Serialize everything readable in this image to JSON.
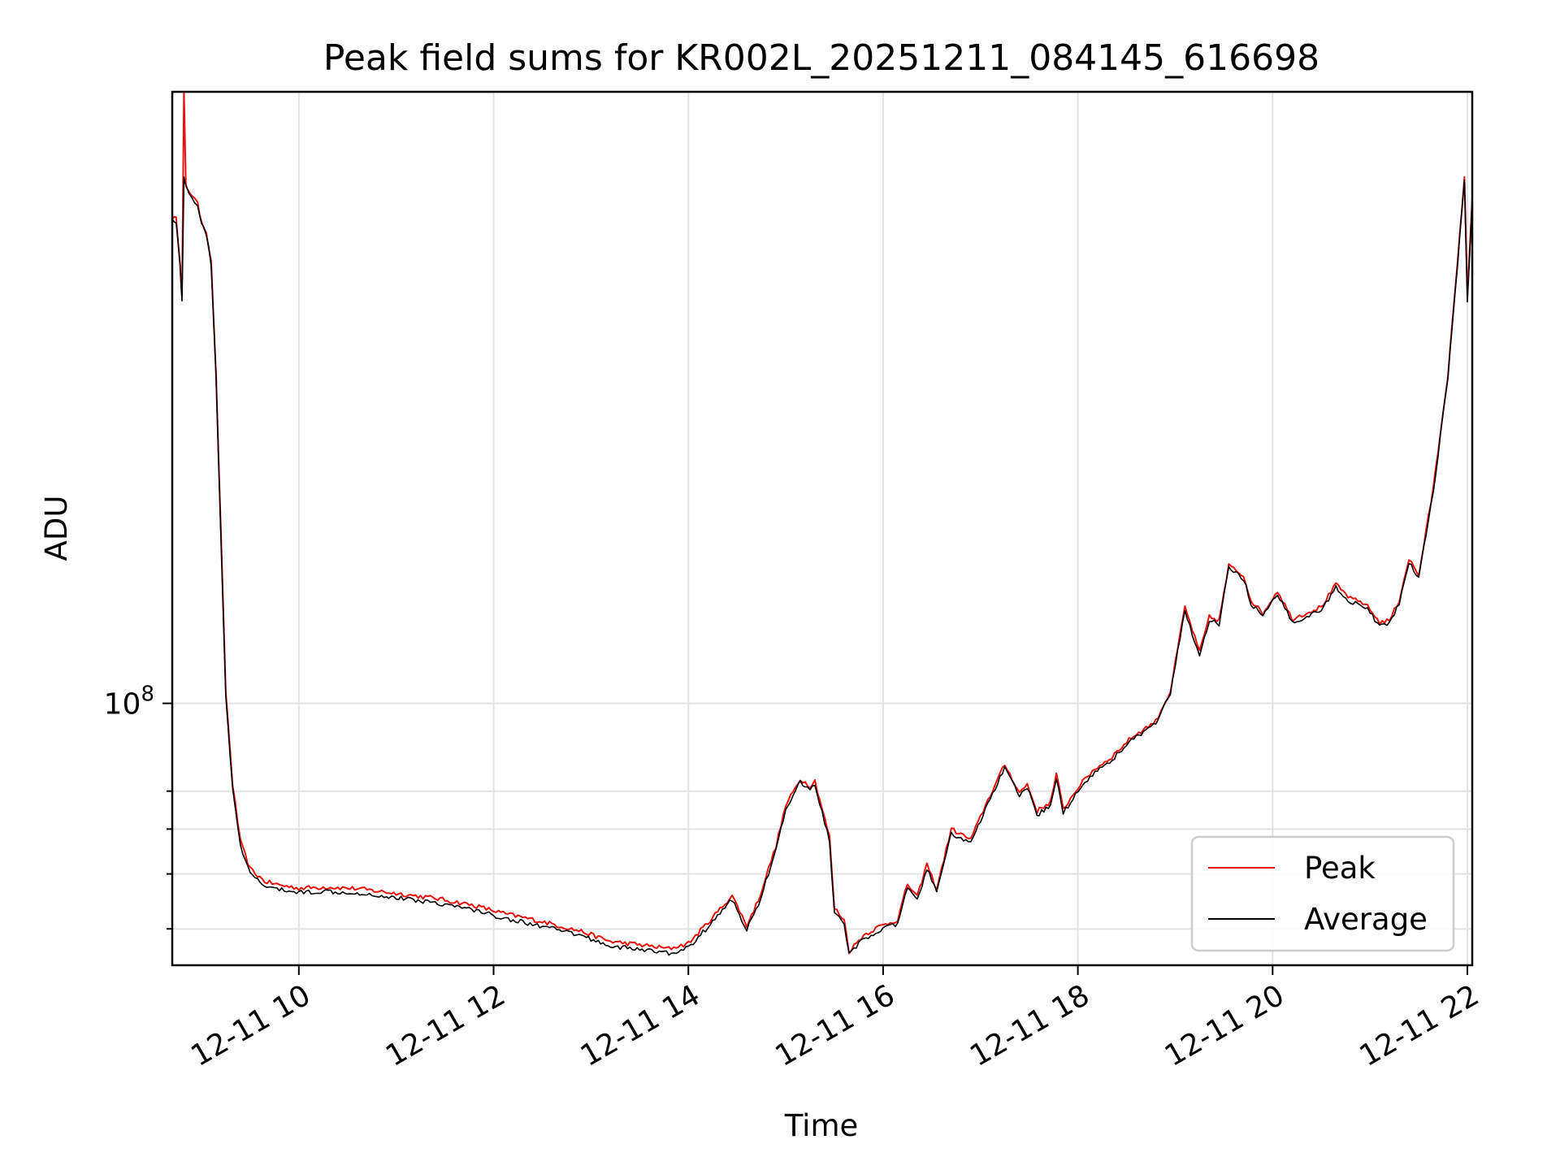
{
  "chart_data": {
    "type": "line",
    "title": "Peak field sums for KR002L_20251211_084145_616698",
    "xlabel": "Time",
    "ylabel": "ADU",
    "y_scale": "log",
    "xlim": [
      8.7,
      22.05
    ],
    "ylim": [
      34500000,
      1200000000
    ],
    "x_ticks": [
      10,
      12,
      14,
      16,
      18,
      20,
      22
    ],
    "x_tick_labels": [
      "12-11 10",
      "12-11 12",
      "12-11 14",
      "12-11 16",
      "12-11 18",
      "12-11 20",
      "12-11 22"
    ],
    "y_major_ticks": [
      100000000
    ],
    "y_tick_labels": [
      {
        "base": "10",
        "exp": "8"
      }
    ],
    "y_minor_ticks": [
      40000000,
      50000000,
      60000000,
      70000000
    ],
    "grid": true,
    "legend": {
      "location": "lower right",
      "entries": [
        "Peak",
        "Average"
      ]
    },
    "series": [
      {
        "name": "Peak",
        "color": "#e8120c",
        "points": [
          [
            8.7,
            720000000
          ],
          [
            8.74,
            715000000
          ],
          [
            8.78,
            600000000
          ],
          [
            8.8,
            520000000
          ],
          [
            8.82,
            1200000000
          ],
          [
            8.84,
            820000000
          ],
          [
            8.9,
            790000000
          ],
          [
            8.96,
            760000000
          ],
          [
            9.0,
            710000000
          ],
          [
            9.05,
            680000000
          ],
          [
            9.1,
            600000000
          ],
          [
            9.15,
            380000000
          ],
          [
            9.2,
            200000000
          ],
          [
            9.25,
            105000000
          ],
          [
            9.32,
            72000000
          ],
          [
            9.4,
            57000000
          ],
          [
            9.5,
            51000000
          ],
          [
            9.65,
            48500000
          ],
          [
            9.8,
            47800000
          ],
          [
            10.0,
            47200000
          ],
          [
            10.3,
            47400000
          ],
          [
            10.6,
            47100000
          ],
          [
            11.0,
            46200000
          ],
          [
            11.4,
            45300000
          ],
          [
            11.8,
            44000000
          ],
          [
            12.1,
            42600000
          ],
          [
            12.5,
            41200000
          ],
          [
            12.9,
            39600000
          ],
          [
            13.2,
            38000000
          ],
          [
            13.5,
            37500000
          ],
          [
            13.8,
            36900000
          ],
          [
            14.0,
            37700000
          ],
          [
            14.2,
            41000000
          ],
          [
            14.45,
            45800000
          ],
          [
            14.6,
            40500000
          ],
          [
            14.72,
            45000000
          ],
          [
            14.9,
            56000000
          ],
          [
            15.0,
            66000000
          ],
          [
            15.15,
            73500000
          ],
          [
            15.25,
            71500000
          ],
          [
            15.3,
            73000000
          ],
          [
            15.45,
            58000000
          ],
          [
            15.5,
            43500000
          ],
          [
            15.6,
            41500000
          ],
          [
            15.65,
            36500000
          ],
          [
            15.8,
            39000000
          ],
          [
            15.95,
            40300000
          ],
          [
            16.15,
            41500000
          ],
          [
            16.25,
            48000000
          ],
          [
            16.35,
            45500000
          ],
          [
            16.45,
            52000000
          ],
          [
            16.55,
            47000000
          ],
          [
            16.7,
            60000000
          ],
          [
            16.9,
            57500000
          ],
          [
            17.05,
            66000000
          ],
          [
            17.25,
            78000000
          ],
          [
            17.4,
            69500000
          ],
          [
            17.48,
            72000000
          ],
          [
            17.58,
            64500000
          ],
          [
            17.72,
            67000000
          ],
          [
            17.78,
            75000000
          ],
          [
            17.85,
            65000000
          ],
          [
            18.0,
            71000000
          ],
          [
            18.15,
            76000000
          ],
          [
            18.35,
            80500000
          ],
          [
            18.55,
            87000000
          ],
          [
            18.8,
            93000000
          ],
          [
            18.95,
            105000000
          ],
          [
            19.1,
            148000000
          ],
          [
            19.25,
            123000000
          ],
          [
            19.35,
            142000000
          ],
          [
            19.45,
            140000000
          ],
          [
            19.55,
            175000000
          ],
          [
            19.7,
            168000000
          ],
          [
            19.78,
            152000000
          ],
          [
            19.9,
            144000000
          ],
          [
            20.05,
            158000000
          ],
          [
            20.2,
            141000000
          ],
          [
            20.5,
            148000000
          ],
          [
            20.65,
            162000000
          ],
          [
            20.8,
            153000000
          ],
          [
            20.95,
            150000000
          ],
          [
            21.1,
            139000000
          ],
          [
            21.2,
            140000000
          ],
          [
            21.3,
            152000000
          ],
          [
            21.4,
            180000000
          ],
          [
            21.5,
            168000000
          ],
          [
            21.65,
            240000000
          ],
          [
            21.8,
            380000000
          ],
          [
            21.9,
            600000000
          ],
          [
            21.97,
            850000000
          ],
          [
            22.0,
            520000000
          ],
          [
            22.05,
            780000000
          ]
        ]
      },
      {
        "name": "Average",
        "color": "#000000",
        "points": [
          [
            8.7,
            715000000
          ],
          [
            8.74,
            710000000
          ],
          [
            8.78,
            595000000
          ],
          [
            8.8,
            510000000
          ],
          [
            8.82,
            850000000
          ],
          [
            8.84,
            815000000
          ],
          [
            8.9,
            785000000
          ],
          [
            8.96,
            755000000
          ],
          [
            9.0,
            705000000
          ],
          [
            9.05,
            675000000
          ],
          [
            9.1,
            595000000
          ],
          [
            9.15,
            375000000
          ],
          [
            9.2,
            197000000
          ],
          [
            9.25,
            103000000
          ],
          [
            9.32,
            70500000
          ],
          [
            9.4,
            55800000
          ],
          [
            9.5,
            50000000
          ],
          [
            9.65,
            47600000
          ],
          [
            9.8,
            46900000
          ],
          [
            10.0,
            46400000
          ],
          [
            10.3,
            46600000
          ],
          [
            10.6,
            46300000
          ],
          [
            11.0,
            45400000
          ],
          [
            11.4,
            44500000
          ],
          [
            11.8,
            43200000
          ],
          [
            12.1,
            41800000
          ],
          [
            12.5,
            40400000
          ],
          [
            12.9,
            38900000
          ],
          [
            13.2,
            37300000
          ],
          [
            13.5,
            36800000
          ],
          [
            13.8,
            36200000
          ],
          [
            14.0,
            37000000
          ],
          [
            14.2,
            40300000
          ],
          [
            14.45,
            45100000
          ],
          [
            14.6,
            39800000
          ],
          [
            14.72,
            44300000
          ],
          [
            14.9,
            55000000
          ],
          [
            15.0,
            65000000
          ],
          [
            15.15,
            72500000
          ],
          [
            15.25,
            70500000
          ],
          [
            15.3,
            72000000
          ],
          [
            15.45,
            57000000
          ],
          [
            15.5,
            42800000
          ],
          [
            15.6,
            40800000
          ],
          [
            15.65,
            36000000
          ],
          [
            15.8,
            38400000
          ],
          [
            15.95,
            39700000
          ],
          [
            16.15,
            40800000
          ],
          [
            16.25,
            47200000
          ],
          [
            16.35,
            44800000
          ],
          [
            16.45,
            51200000
          ],
          [
            16.55,
            46300000
          ],
          [
            16.7,
            59000000
          ],
          [
            16.9,
            56500000
          ],
          [
            17.05,
            65000000
          ],
          [
            17.25,
            77000000
          ],
          [
            17.4,
            68500000
          ],
          [
            17.48,
            71000000
          ],
          [
            17.58,
            63500000
          ],
          [
            17.72,
            66000000
          ],
          [
            17.78,
            74000000
          ],
          [
            17.85,
            64000000
          ],
          [
            18.0,
            70000000
          ],
          [
            18.15,
            75000000
          ],
          [
            18.35,
            79500000
          ],
          [
            18.55,
            86000000
          ],
          [
            18.8,
            92000000
          ],
          [
            18.95,
            104000000
          ],
          [
            19.1,
            146000000
          ],
          [
            19.25,
            121000000
          ],
          [
            19.35,
            140000000
          ],
          [
            19.45,
            138000000
          ],
          [
            19.55,
            173000000
          ],
          [
            19.7,
            166000000
          ],
          [
            19.78,
            150000000
          ],
          [
            19.9,
            142000000
          ],
          [
            20.05,
            156000000
          ],
          [
            20.2,
            139000000
          ],
          [
            20.5,
            146000000
          ],
          [
            20.65,
            160000000
          ],
          [
            20.8,
            151000000
          ],
          [
            20.95,
            148000000
          ],
          [
            21.1,
            137000000
          ],
          [
            21.2,
            138000000
          ],
          [
            21.3,
            150000000
          ],
          [
            21.4,
            178000000
          ],
          [
            21.5,
            166000000
          ],
          [
            21.65,
            237000000
          ],
          [
            21.8,
            376000000
          ],
          [
            21.9,
            595000000
          ],
          [
            21.97,
            845000000
          ],
          [
            22.0,
            515000000
          ],
          [
            22.05,
            775000000
          ]
        ]
      }
    ]
  }
}
